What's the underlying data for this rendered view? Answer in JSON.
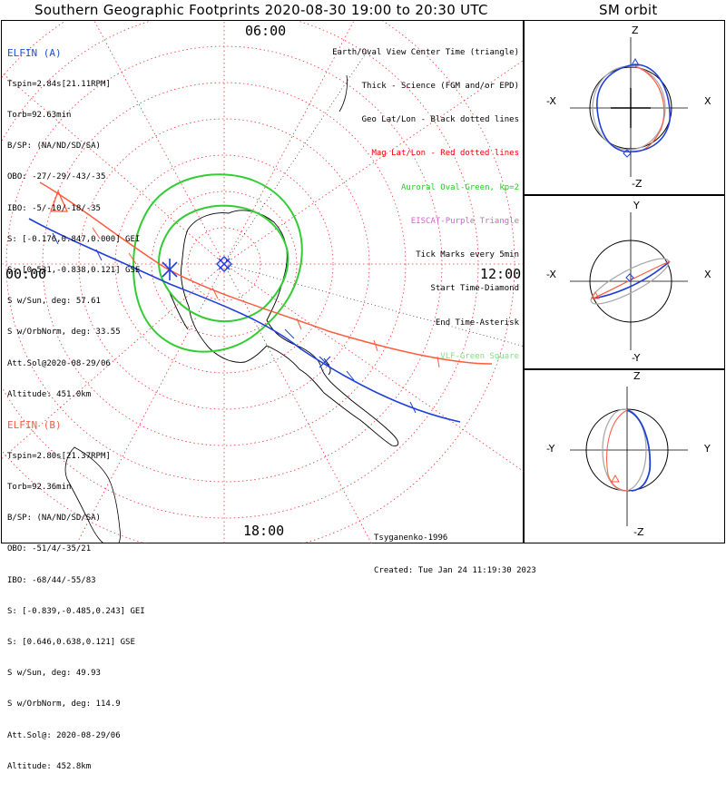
{
  "title": "Southern Geographic Footprints 2020-08-30 19:00 to 20:30 UTC",
  "side_title": "SM orbit",
  "mlt_labels": {
    "top": "06:00",
    "left": "00:00",
    "right": "12:00",
    "bottom": "18:00"
  },
  "elfin_a": {
    "name": "ELFIN (A)",
    "lines": [
      "Tspin=2.84s[21.11RPM]",
      "Torb=92.63min",
      "B/SP: (NA/ND/SD/SA)",
      "OBO: -27/-29/-43/-35",
      "IBO: -5/-10/-18/-35",
      "S: [-0.176,0.847,0.000] GEI",
      "S: [0.531,-0.838,0.121] GSE",
      "S w/Sun, deg: 57.61",
      "S w/OrbNorm, deg: 33.55",
      "Att.Sol@2020-08-29/06",
      "Altitude: 451.0km"
    ],
    "color": "#1f4fd8"
  },
  "elfin_b": {
    "name": "ELFIN (B)",
    "lines": [
      "Tspin=2.80s[21.37RPM]",
      "Torb=92.36min",
      "B/SP: (NA/ND/SD/SA)",
      "OBO: -51/4/-35/21",
      "IBO: -68/44/-55/83",
      "S: [-0.839,-0.485,0.243] GEI",
      "S: [0.646,0.638,0.121] GSE",
      "S w/Sun, deg: 49.93",
      "S w/OrbNorm, deg: 114.9",
      "Att.Sol@: 2020-08-29/06",
      "Altitude: 452.8km"
    ],
    "color": "#ff5a3c"
  },
  "legend": [
    {
      "text": "Earth/Oval View Center Time (triangle)",
      "color": "#000000"
    },
    {
      "text": "Thick - Science (FGM and/or EPD)",
      "color": "#000000"
    },
    {
      "text": "Geo Lat/Lon - Black dotted lines",
      "color": "#000000"
    },
    {
      "text": "Mag Lat/Lon - Red dotted lines",
      "color": "#ee0000"
    },
    {
      "text": "Auroral Oval-Green, kp=2",
      "color": "#22cc22"
    },
    {
      "text": "EISCAT-Purple Triangle",
      "color": "#cc66cc"
    },
    {
      "text": "Tick Marks every 5min",
      "color": "#000000"
    },
    {
      "text": "Start Time-Diamond",
      "color": "#000000"
    },
    {
      "text": "End Time-Asterisk",
      "color": "#000000"
    },
    {
      "text": "VLF-Green Square",
      "color": "#88dd88"
    }
  ],
  "credit": [
    "Tsyganenko-1996",
    "Created: Tue Jan 24 11:19:30 2023"
  ],
  "orbit_panels": [
    {
      "top": "Z",
      "bottom": "-Z",
      "left": "-X",
      "right": "X"
    },
    {
      "top": "Y",
      "bottom": "-Y",
      "left": "-X",
      "right": "X"
    },
    {
      "top": "Z",
      "bottom": "-Z",
      "left": "-Y",
      "right": "Y"
    }
  ],
  "colors": {
    "grid_red": "#ee3333",
    "oval_green": "#33cc33",
    "orbit_gray": "#aaaaaa"
  }
}
